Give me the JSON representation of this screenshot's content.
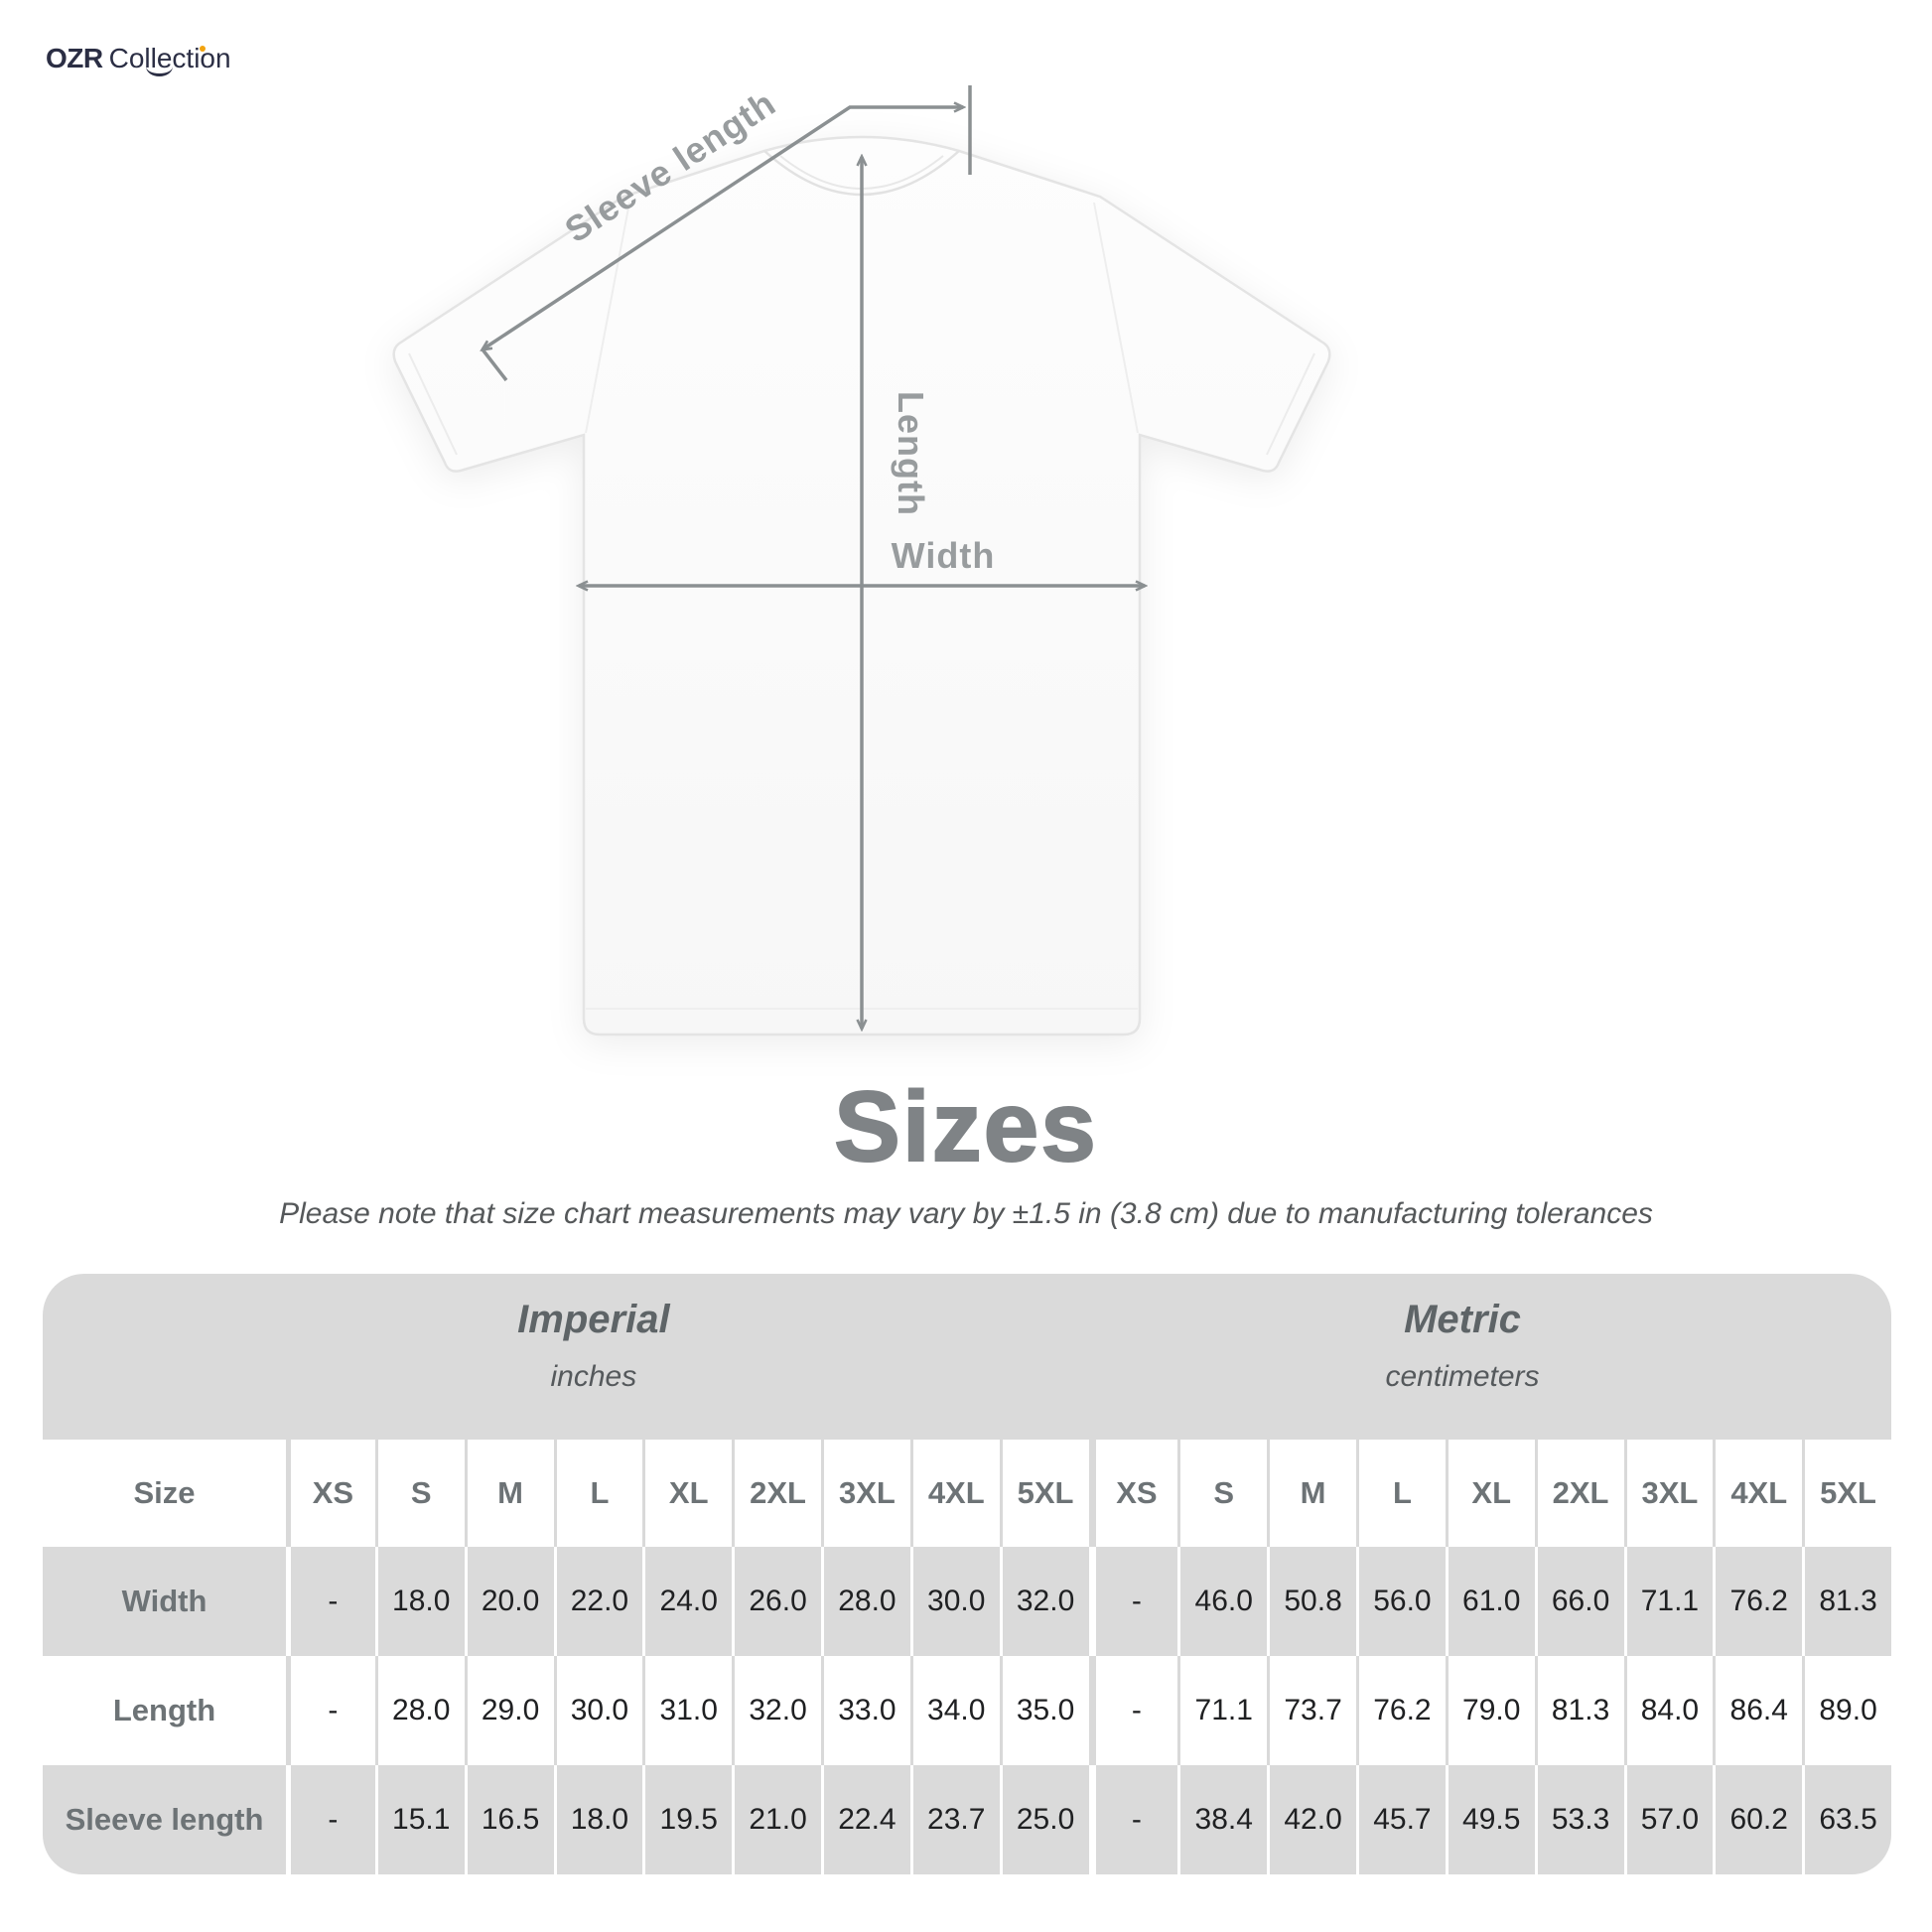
{
  "brand": {
    "name_bold": "OZR",
    "name_light": "Collection"
  },
  "diagram": {
    "sleeve_label": "Sleeve length",
    "length_label": "Length",
    "width_label": "Width"
  },
  "heading": {
    "title": "Sizes",
    "note": "Please note that size chart measurements may vary by ±1.5 in (3.8 cm) due to manufacturing tolerances"
  },
  "table": {
    "corner_label": "Size",
    "groups": [
      {
        "label": "Imperial",
        "sublabel": "inches"
      },
      {
        "label": "Metric",
        "sublabel": "centimeters"
      }
    ],
    "sizes": [
      "XS",
      "S",
      "M",
      "L",
      "XL",
      "2XL",
      "3XL",
      "4XL",
      "5XL"
    ],
    "rows": [
      {
        "label": "Width",
        "imperial": [
          "-",
          "18.0",
          "20.0",
          "22.0",
          "24.0",
          "26.0",
          "28.0",
          "30.0",
          "32.0"
        ],
        "metric": [
          "-",
          "46.0",
          "50.8",
          "56.0",
          "61.0",
          "66.0",
          "71.1",
          "76.2",
          "81.3"
        ]
      },
      {
        "label": "Length",
        "imperial": [
          "-",
          "28.0",
          "29.0",
          "30.0",
          "31.0",
          "32.0",
          "33.0",
          "34.0",
          "35.0"
        ],
        "metric": [
          "-",
          "71.1",
          "73.7",
          "76.2",
          "79.0",
          "81.3",
          "84.0",
          "86.4",
          "89.0"
        ]
      },
      {
        "label": "Sleeve length",
        "imperial": [
          "-",
          "15.1",
          "16.5",
          "18.0",
          "19.5",
          "21.0",
          "22.4",
          "23.7",
          "25.0"
        ],
        "metric": [
          "-",
          "38.4",
          "42.0",
          "45.7",
          "49.5",
          "53.3",
          "57.0",
          "60.2",
          "63.5"
        ]
      }
    ]
  },
  "colors": {
    "brand_navy": "#2b2e44",
    "accent_dot": "#f2a30f",
    "dim_line_gray": "#8b9092",
    "band_gray": "#dadada",
    "title_gray": "#7f8386"
  }
}
